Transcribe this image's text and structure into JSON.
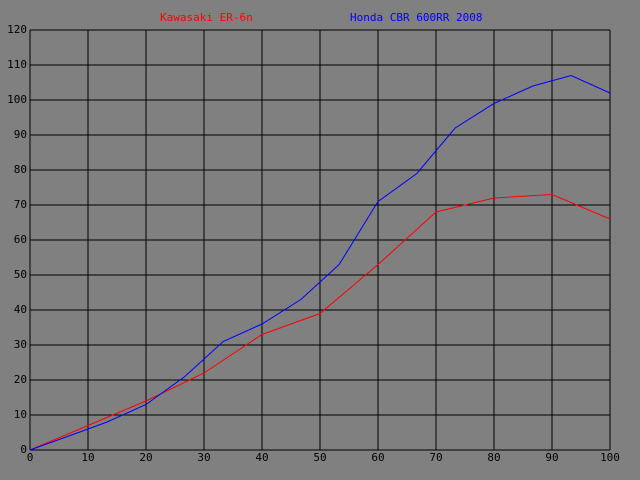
{
  "chart_data": {
    "type": "line",
    "series": [
      {
        "name": "Kawasaki ER-6n",
        "color": "#ff0000",
        "x": [
          0,
          10,
          20,
          30,
          40,
          50,
          60,
          70,
          80,
          90,
          100
        ],
        "values": [
          0,
          7,
          14,
          22,
          33,
          39,
          53,
          68,
          72,
          73,
          66
        ]
      },
      {
        "name": "Honda CBR 600RR 2008",
        "color": "#0000ff",
        "x": [
          0,
          6.7,
          13.3,
          20,
          26.7,
          33.3,
          40,
          46.7,
          53.3,
          60,
          66.7,
          73.3,
          80,
          86.7,
          93.3,
          100
        ],
        "values": [
          0,
          4,
          8,
          13,
          21,
          31,
          36,
          43,
          53,
          71,
          79,
          92,
          99,
          104,
          107,
          102
        ]
      }
    ],
    "xlim": [
      0,
      100
    ],
    "xticks": [
      0,
      10,
      20,
      30,
      40,
      50,
      60,
      70,
      80,
      90,
      100
    ],
    "ylim": [
      0,
      120
    ],
    "yticks": [
      0,
      10,
      20,
      30,
      40,
      50,
      60,
      70,
      80,
      90,
      100,
      110,
      120
    ],
    "grid": true
  }
}
